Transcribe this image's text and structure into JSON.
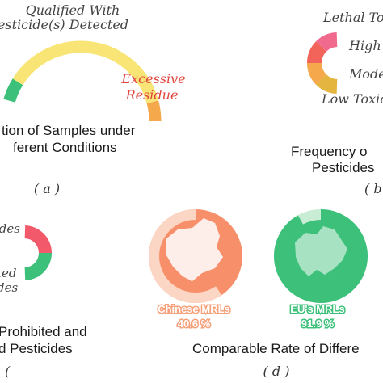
{
  "panels": {
    "a": {
      "title_line1": "tion of Samples under",
      "title_line2": "ferent Conditions",
      "tag": "( a )",
      "labels": {
        "qualified_line1": "Qualified With",
        "qualified_line2": "esticide(s) Detected",
        "excessive_line1": "Excessive",
        "excessive_line2": "Residue"
      }
    },
    "b": {
      "title_line1": "Frequency o",
      "title_line2": "Pesticides",
      "tag": "( b",
      "labels": {
        "lethal": "Lethal To",
        "high": "High",
        "moderate": "Mode",
        "low": "Low Toxic"
      }
    },
    "c": {
      "title_line1": "Prohibited and",
      "title_line2": "d Pesticides",
      "tag": "(",
      "labels": {
        "top": "ides",
        "bottom_line1": "ted",
        "bottom_line2": "des"
      }
    },
    "d": {
      "title": "Comparable Rate of Differe",
      "tag": "( d )",
      "chinese_label": "Chinese MRLs",
      "chinese_value": "40.6 %",
      "eu_label": "EU's MRLs",
      "eu_value": "91.9 %"
    }
  },
  "colors": {
    "green": "#3cc07a",
    "yellow": "#f9e576",
    "orange": "#f6a84c",
    "red": "#f2635a",
    "pink": "#f06a8d",
    "mustard": "#e4b53f",
    "salmon": "#f7906a",
    "salmon_light": "#fcd6c4",
    "eu_green": "#3cc07a",
    "eu_light": "#c9ecd5",
    "c_red": "#f25a6b"
  },
  "chart_data": [
    {
      "panel": "a",
      "type": "pie",
      "series": [
        {
          "name": "Qualified With Pesticide(s) Detected",
          "values": []
        },
        {
          "name": "Excessive Residue",
          "values": []
        }
      ]
    },
    {
      "panel": "b",
      "type": "pie",
      "categories": [
        "Lethal To",
        "High",
        "Mode",
        "Low Toxic"
      ]
    },
    {
      "panel": "d",
      "type": "pie",
      "categories": [
        "Chinese MRLs",
        "EU's MRLs"
      ],
      "values": [
        40.6,
        91.9
      ]
    }
  ]
}
